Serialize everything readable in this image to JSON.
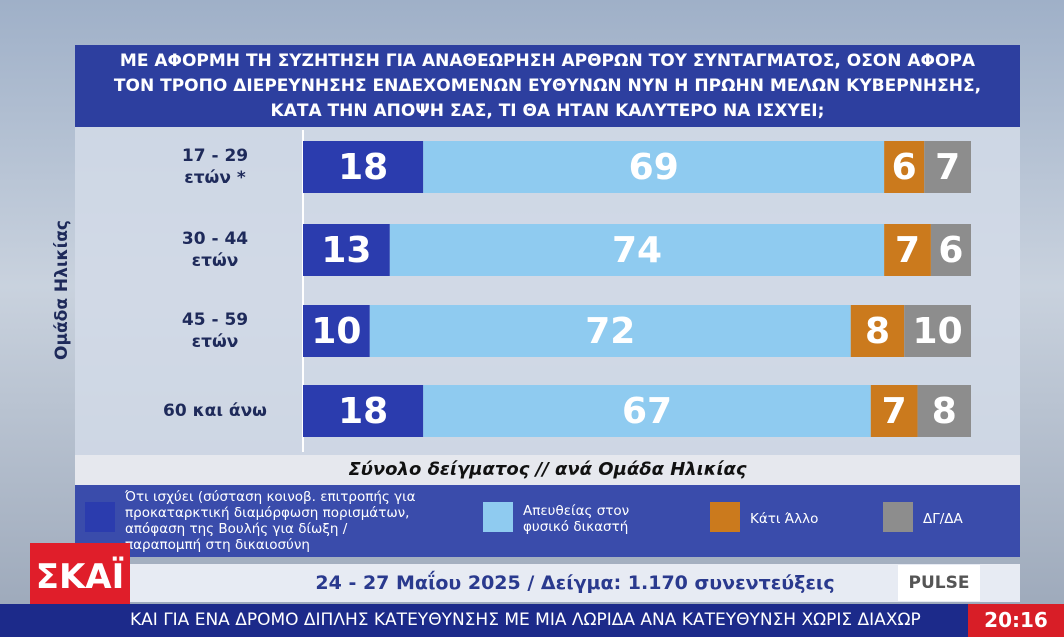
{
  "chart_data": {
    "type": "stacked-bar-horizontal",
    "title": [
      "ΜΕ ΑΦΟΡΜΗ ΤΗ ΣΥΖΗΤΗΣΗ ΓΙΑ ΑΝΑΘΕΩΡΗΣΗ ΑΡΘΡΩΝ ΤΟΥ ΣΥΝΤΑΓΜΑΤΟΣ, ΟΣΟΝ ΑΦΟΡΑ",
      "ΤΟΝ ΤΡΟΠΟ ΔΙΕΡΕΥΝΗΣΗΣ ΕΝΔΕΧΟΜΕΝΩΝ ΕΥΘΥΝΩΝ ΝΥΝ Η ΠΡΩΗΝ ΜΕΛΩΝ ΚΥΒΕΡΝΗΣΗΣ,",
      "ΚΑΤΑ ΤΗΝ ΑΠΟΨΗ ΣΑΣ, ΤΙ ΘΑ ΗΤΑΝ ΚΑΛΥΤΕΡΟ ΝΑ ΙΣΧΥΕΙ;"
    ],
    "subtitle": "Σύνολο δείγματος // ανά Ομάδα Ηλικίας",
    "ylabel": "Ομάδα Ηλικίας",
    "categories": [
      "17 - 29\nετών *",
      "30 - 44\nετών",
      "45 - 59\nετών",
      "60 και άνω"
    ],
    "xlim": [
      0,
      100
    ],
    "series": [
      {
        "name": "Ότι ισχύει (σύσταση κοινοβ. επιτροπής για προκαταρκτική διαμόρφωση πορισμάτων, απόφαση της Βουλής για δίωξη / παραπομπή στη δικαιοσύνη",
        "color": "#2b3cae",
        "values": [
          18,
          13,
          10,
          18
        ]
      },
      {
        "name": "Απευθείας στον φυσικό δικαστή",
        "color": "#8fcbf0",
        "values": [
          69,
          74,
          72,
          67
        ]
      },
      {
        "name": "Κάτι Άλλο",
        "color": "#cb7a1d",
        "values": [
          6,
          7,
          8,
          7
        ]
      },
      {
        "name": "ΔΓ/ΔΑ",
        "color": "#8d8d8d",
        "values": [
          7,
          6,
          10,
          8
        ]
      }
    ]
  },
  "footer": {
    "channel": "ΣΚΑΪ",
    "source_note": "24 - 27 Μαΐου 2025 / Δείγμα: 1.170 συνεντεύξεις",
    "pollster": "PULSE",
    "ticker": "ΚΑΙ ΓΙΑ ΕΝΑ ΔΡΟΜΟ ΔΙΠΛΗΣ ΚΑΤΕΥΘΥΝΣΗΣ ΜΕ ΜΙΑ ΛΩΡΙΔΑ ΑΝΑ ΚΑΤΕΥΘΥΝΣΗ ΧΩΡΙΣ ΔΙΑΧΩΡ",
    "clock": "20:16"
  }
}
